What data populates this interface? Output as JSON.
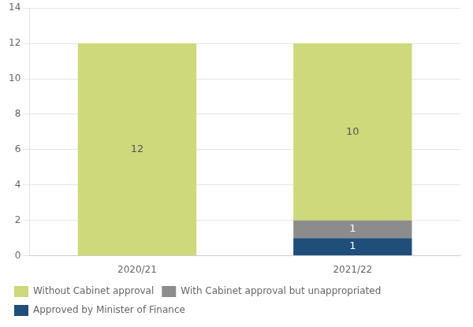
{
  "chart_data": {
    "type": "bar",
    "stacked": true,
    "categories": [
      "2020/21",
      "2021/22"
    ],
    "series": [
      {
        "name": "Approved by Minister of Finance",
        "color": "#1f4e79",
        "values": [
          0,
          1
        ]
      },
      {
        "name": "With Cabinet approval but unappropriated",
        "color": "#8c8c8c",
        "values": [
          0,
          1
        ]
      },
      {
        "name": "Without Cabinet approval",
        "color": "#cdd97a",
        "values": [
          12,
          10
        ]
      }
    ],
    "ylim": [
      0,
      14
    ],
    "yticks": [
      0,
      2,
      4,
      6,
      8,
      10,
      12,
      14
    ],
    "grid": true,
    "legend": "bottom",
    "data_labels": true
  }
}
